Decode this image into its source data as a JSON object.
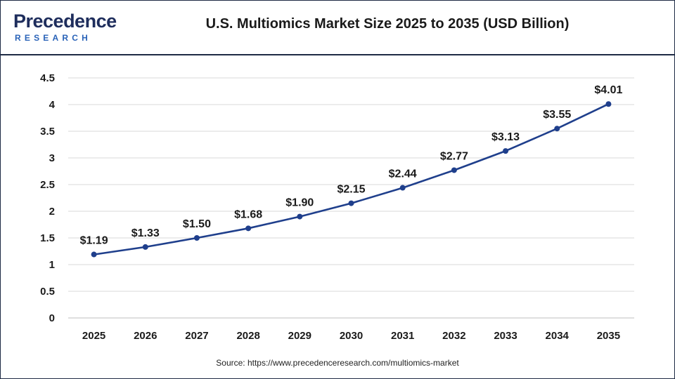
{
  "brand": {
    "logo_text_top": "Precedence",
    "logo_text_bottom": "RESEARCH"
  },
  "source_text": "Source: https://www.precedenceresearch.com/multiomics-market",
  "colors": {
    "line": "#1f3f8c",
    "marker": "#1f3f8c",
    "grid": "#d9d9d9",
    "text": "#1a1a1a",
    "border": "#1e2a44"
  },
  "chart_data": {
    "type": "line",
    "title": "U.S. Multiomics Market Size 2025 to 2035 (USD Billion)",
    "xlabel": "",
    "ylabel": "",
    "categories": [
      "2025",
      "2026",
      "2027",
      "2028",
      "2029",
      "2030",
      "2031",
      "2032",
      "2033",
      "2034",
      "2035"
    ],
    "values": [
      1.19,
      1.33,
      1.5,
      1.68,
      1.9,
      2.15,
      2.44,
      2.77,
      3.13,
      3.55,
      4.01
    ],
    "data_labels": [
      "$1.19",
      "$1.33",
      "$1.50",
      "$1.68",
      "$1.90",
      "$2.15",
      "$2.44",
      "$2.77",
      "$3.13",
      "$3.55",
      "$4.01"
    ],
    "ylim": [
      0,
      4.5
    ],
    "yticks": [
      0,
      0.5,
      1,
      1.5,
      2,
      2.5,
      3,
      3.5,
      4,
      4.5
    ],
    "ytick_labels": [
      "0",
      "0.5",
      "1",
      "1.5",
      "2",
      "2.5",
      "3",
      "3.5",
      "4",
      "4.5"
    ],
    "grid": true,
    "legend": "none"
  }
}
